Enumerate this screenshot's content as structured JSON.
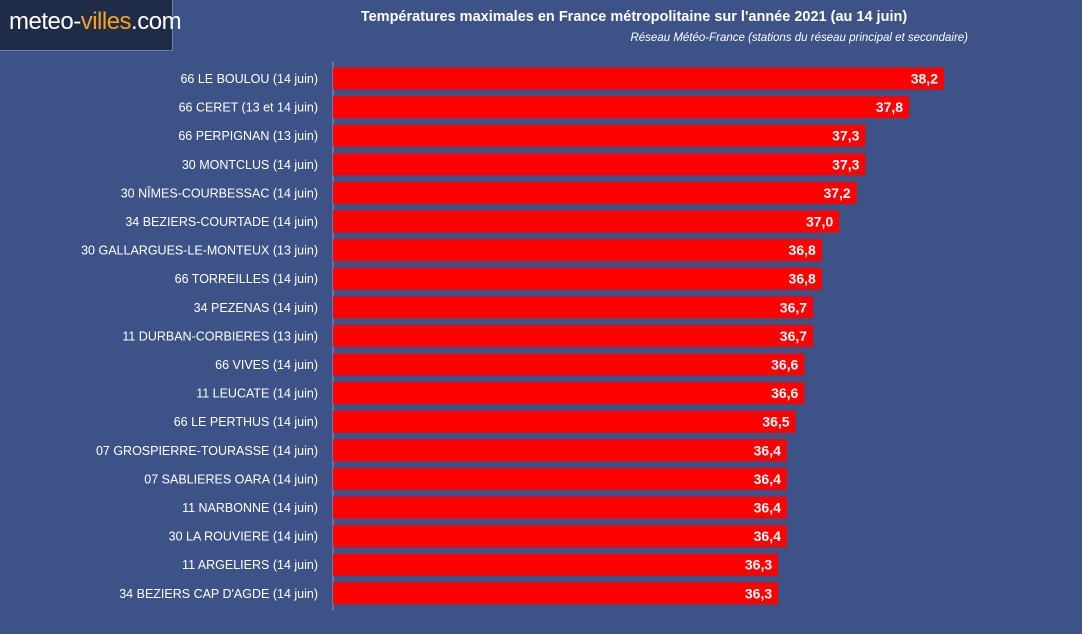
{
  "logo": {
    "text_part1": "meteo-",
    "text_part2": "villes",
    "text_part3": ".com"
  },
  "colors": {
    "background": "#3d5388",
    "bar": "#ff0000",
    "logo_accent": "#f6a21e"
  },
  "chart_data": {
    "type": "bar",
    "orientation": "horizontal",
    "title": "Températures maximales en France métropolitaine sur l'année 2021 (au 14 juin)",
    "subtitle": "Réseau Météo-France (stations du réseau principal et secondaire)",
    "xlabel": "",
    "ylabel": "",
    "xlim": [
      31.2,
      39.3
    ],
    "grid": false,
    "legend": "none",
    "categories": [
      "66 LE BOULOU (14 juin)",
      "66 CERET (13 et 14 juin)",
      "66 PERPIGNAN (13 juin)",
      "30 MONTCLUS (14 juin)",
      "30 NÎMES-COURBESSAC (14 juin)",
      "34 BEZIERS-COURTADE (14 juin)",
      "30 GALLARGUES-LE-MONTEUX (13 juin)",
      "66 TORREILLES (14 juin)",
      "34 PEZENAS (14 juin)",
      "11 DURBAN-CORBIERES (13 juin)",
      "66 VIVES (14 juin)",
      "11 LEUCATE (14 juin)",
      "66 LE PERTHUS (14 juin)",
      "07 GROSPIERRE-TOURASSE (14 juin)",
      "07 SABLIERES OARA (14 juin)",
      "11 NARBONNE (14 juin)",
      "30 LA ROUVIERE (14 juin)",
      "11 ARGELIERS (14 juin)",
      "34 BEZIERS CAP D'AGDE (14 juin)"
    ],
    "values": [
      38.2,
      37.8,
      37.3,
      37.3,
      37.2,
      37.0,
      36.8,
      36.8,
      36.7,
      36.7,
      36.6,
      36.6,
      36.5,
      36.4,
      36.4,
      36.4,
      36.4,
      36.3,
      36.3
    ],
    "value_labels": [
      "38,2",
      "37,8",
      "37,3",
      "37,3",
      "37,2",
      "37,0",
      "36,8",
      "36,8",
      "36,7",
      "36,7",
      "36,6",
      "36,6",
      "36,5",
      "36,4",
      "36,4",
      "36,4",
      "36,4",
      "36,3",
      "36,3"
    ]
  }
}
